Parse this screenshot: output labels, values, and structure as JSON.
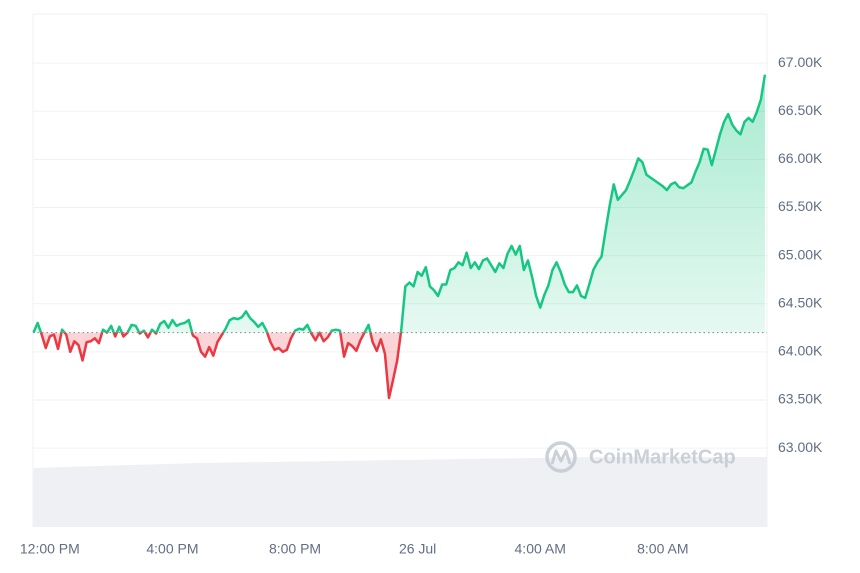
{
  "chart_data": {
    "type": "line",
    "watermark": "CoinMarketCap",
    "colors": {
      "up": "#16c784",
      "down": "#ea3943"
    },
    "grid": true,
    "xlim": [
      -33,
      1404
    ],
    "xticks": [
      {
        "value": 0,
        "label": "12:00 PM"
      },
      {
        "value": 240,
        "label": "4:00 PM"
      },
      {
        "value": 480,
        "label": "8:00 PM"
      },
      {
        "value": 720,
        "label": "26 Jul"
      },
      {
        "value": 960,
        "label": "4:00 AM"
      },
      {
        "value": 1200,
        "label": "8:00 AM"
      }
    ],
    "ylim": [
      62180,
      67510
    ],
    "yticks": [
      {
        "value": 63000,
        "label": "63.00K"
      },
      {
        "value": 63500,
        "label": "63.50K"
      },
      {
        "value": 64000,
        "label": "64.00K"
      },
      {
        "value": 64500,
        "label": "64.50K"
      },
      {
        "value": 65000,
        "label": "65.00K"
      },
      {
        "value": 65500,
        "label": "65.50K"
      },
      {
        "value": 66000,
        "label": "66.00K"
      },
      {
        "value": 66500,
        "label": "66.50K"
      },
      {
        "value": 67000,
        "label": "67.00K"
      }
    ],
    "x": [
      -32,
      -24,
      -16,
      -8,
      0,
      8,
      16,
      24,
      32,
      40,
      48,
      56,
      64,
      72,
      80,
      88,
      96,
      104,
      112,
      120,
      128,
      136,
      144,
      152,
      160,
      168,
      176,
      184,
      192,
      200,
      208,
      216,
      224,
      232,
      240,
      248,
      256,
      264,
      272,
      280,
      288,
      296,
      304,
      312,
      320,
      328,
      336,
      344,
      352,
      360,
      368,
      376,
      384,
      392,
      400,
      408,
      416,
      424,
      432,
      440,
      448,
      456,
      464,
      472,
      480,
      488,
      496,
      504,
      512,
      520,
      528,
      536,
      544,
      552,
      560,
      568,
      576,
      584,
      592,
      600,
      608,
      616,
      624,
      632,
      640,
      648,
      656,
      664,
      672,
      680,
      688,
      696,
      704,
      712,
      720,
      728,
      736,
      744,
      752,
      760,
      768,
      776,
      784,
      792,
      800,
      808,
      816,
      824,
      832,
      840,
      848,
      856,
      864,
      872,
      880,
      888,
      896,
      904,
      912,
      920,
      928,
      936,
      944,
      952,
      960,
      968,
      976,
      984,
      992,
      1000,
      1008,
      1016,
      1024,
      1032,
      1040,
      1048,
      1056,
      1064,
      1072,
      1080,
      1088,
      1096,
      1104,
      1112,
      1120,
      1128,
      1136,
      1144,
      1152,
      1160,
      1168,
      1176,
      1184,
      1192,
      1200,
      1208,
      1216,
      1224,
      1232,
      1240,
      1248,
      1256,
      1264,
      1272,
      1280,
      1288,
      1296,
      1304,
      1312,
      1320,
      1328,
      1336,
      1344,
      1352,
      1360,
      1368,
      1376,
      1384,
      1392,
      1400
    ],
    "values": [
      64200,
      64300,
      64180,
      64040,
      64160,
      64180,
      64030,
      64230,
      64180,
      64000,
      64110,
      64070,
      63910,
      64100,
      64110,
      64140,
      64090,
      64230,
      64200,
      64270,
      64160,
      64260,
      64160,
      64200,
      64280,
      64270,
      64190,
      64220,
      64150,
      64230,
      64190,
      64290,
      64320,
      64250,
      64330,
      64270,
      64290,
      64300,
      64330,
      64170,
      64140,
      64000,
      63950,
      64050,
      63960,
      64100,
      64170,
      64240,
      64330,
      64350,
      64340,
      64360,
      64420,
      64350,
      64310,
      64260,
      64300,
      64220,
      64100,
      64020,
      64040,
      64000,
      64020,
      64140,
      64220,
      64240,
      64230,
      64280,
      64190,
      64120,
      64200,
      64110,
      64150,
      64220,
      64230,
      64220,
      63950,
      64090,
      64060,
      64010,
      64120,
      64200,
      64280,
      64100,
      64010,
      64130,
      63980,
      63520,
      63710,
      63910,
      64230,
      64680,
      64720,
      64680,
      64830,
      64790,
      64880,
      64680,
      64640,
      64580,
      64700,
      64700,
      64850,
      64870,
      64930,
      64900,
      65030,
      64870,
      64930,
      64860,
      64950,
      64970,
      64900,
      64830,
      64920,
      64870,
      65020,
      65100,
      65010,
      65100,
      64850,
      64950,
      64780,
      64580,
      64460,
      64590,
      64690,
      64850,
      64930,
      64830,
      64700,
      64620,
      64620,
      64690,
      64580,
      64560,
      64700,
      64850,
      64930,
      64990,
      65260,
      65520,
      65740,
      65580,
      65630,
      65680,
      65780,
      65890,
      66010,
      65970,
      65840,
      65810,
      65780,
      65750,
      65720,
      65680,
      65740,
      65760,
      65710,
      65700,
      65730,
      65760,
      65870,
      65970,
      66110,
      66100,
      65940,
      66100,
      66260,
      66390,
      66470,
      66360,
      66300,
      66260,
      66390,
      66430,
      66390,
      66490,
      66620,
      66880
    ]
  }
}
